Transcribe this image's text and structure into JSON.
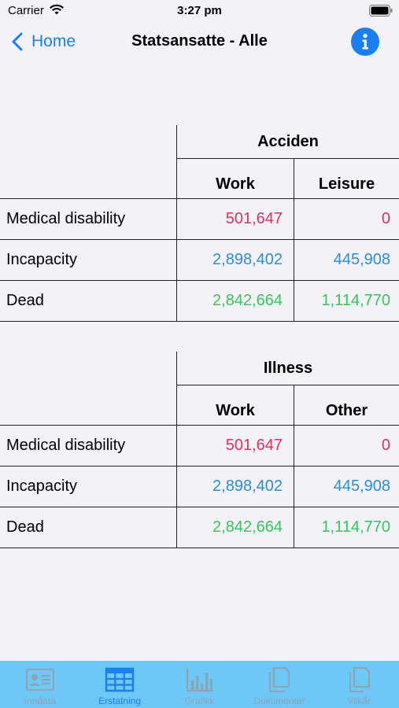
{
  "status_bar": {
    "carrier": "Carrier",
    "time": "3:27 pm"
  },
  "nav": {
    "back_label": "Home",
    "title": "Statsansatte - Alle"
  },
  "tables": [
    {
      "group_header": "Acciden",
      "columns": [
        "Work",
        "Leisure"
      ],
      "rows": [
        {
          "label": "Medical disability",
          "values": [
            "501,647",
            "0"
          ]
        },
        {
          "label": "Incapacity",
          "values": [
            "2,898,402",
            "445,908"
          ]
        },
        {
          "label": "Dead",
          "values": [
            "2,842,664",
            "1,114,770"
          ]
        }
      ]
    },
    {
      "group_header": "Illness",
      "columns": [
        "Work",
        "Other"
      ],
      "rows": [
        {
          "label": "Medical disability",
          "values": [
            "501,647",
            "0"
          ]
        },
        {
          "label": "Incapacity",
          "values": [
            "2,898,402",
            "445,908"
          ]
        },
        {
          "label": "Dead",
          "values": [
            "2,842,664",
            "1,114,770"
          ]
        }
      ]
    }
  ],
  "colors": {
    "accent": "#1a7ff5",
    "disability": "#e0315a",
    "incapacity": "#2a8ee0",
    "dead": "#34c759",
    "tab_bar": "#6ec8f5"
  },
  "tab_bar": {
    "tabs": [
      {
        "label": "Inndata",
        "icon": "id-card-icon",
        "active": false
      },
      {
        "label": "Erstatning",
        "icon": "table-grid-icon",
        "active": true
      },
      {
        "label": "Grafikk",
        "icon": "bar-chart-icon",
        "active": false
      },
      {
        "label": "Dokumenter",
        "icon": "documents-icon",
        "active": false
      },
      {
        "label": "Vilkår",
        "icon": "terms-icon",
        "active": false
      }
    ]
  }
}
